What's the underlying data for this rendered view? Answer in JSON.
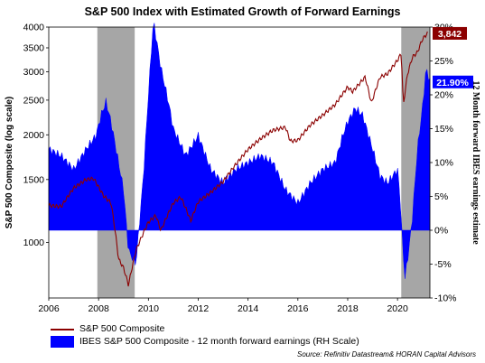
{
  "chart_data": {
    "type": "line",
    "title": "S&P 500 Index with Estimated Growth of Forward Earnings",
    "ylabel_left": "S&P 500 Composite (log scale)",
    "ylabel_right": "12 Month forward IBES earnings estimate",
    "x_ticks": [
      "2006",
      "2008",
      "2010",
      "2012",
      "2014",
      "2016",
      "2018",
      "2020"
    ],
    "x_range": [
      2006,
      2021.3
    ],
    "left_axis": {
      "scale": "log",
      "range": [
        700,
        4000
      ],
      "ticks": [
        1000,
        1500,
        2000,
        2500,
        3000,
        3500,
        4000
      ],
      "tick_labels": [
        "1000",
        "1500",
        "2000",
        "2500",
        "3000",
        "3500",
        "4000"
      ]
    },
    "right_axis": {
      "range": [
        -10,
        30
      ],
      "ticks": [
        -10,
        -5,
        0,
        5,
        10,
        15,
        20,
        25,
        30
      ],
      "tick_labels": [
        "-10%",
        "-5%",
        "0%",
        "5%",
        "10%",
        "15%",
        "20%",
        "25%",
        "30%"
      ]
    },
    "recessions": [
      [
        2007.95,
        2009.45
      ],
      [
        2020.15,
        2021.3
      ]
    ],
    "series": [
      {
        "name": "S&P 500 Composite",
        "axis": "left",
        "color": "#8b0000",
        "x": [
          2006.0,
          2006.5,
          2007.0,
          2007.5,
          2007.8,
          2008.2,
          2008.5,
          2008.8,
          2009.0,
          2009.2,
          2009.5,
          2010.0,
          2010.3,
          2010.5,
          2011.0,
          2011.3,
          2011.7,
          2012.0,
          2012.5,
          2013.0,
          2013.5,
          2014.0,
          2014.5,
          2015.0,
          2015.5,
          2015.7,
          2016.0,
          2016.5,
          2017.0,
          2017.5,
          2018.0,
          2018.2,
          2018.7,
          2018.95,
          2019.3,
          2019.6,
          2020.0,
          2020.15,
          2020.23,
          2020.4,
          2020.6,
          2020.8,
          2021.0,
          2021.2
        ],
        "y": [
          1270,
          1260,
          1420,
          1500,
          1510,
          1350,
          1290,
          900,
          850,
          760,
          950,
          1140,
          1190,
          1080,
          1290,
          1340,
          1150,
          1300,
          1380,
          1480,
          1650,
          1820,
          1950,
          2060,
          2100,
          1920,
          1930,
          2130,
          2270,
          2430,
          2720,
          2640,
          2900,
          2450,
          2900,
          2960,
          3230,
          3380,
          2400,
          2950,
          3300,
          3400,
          3700,
          3842
        ]
      },
      {
        "name": "IBES S&P 500 Composite - 12 month forward earnings (RH Scale)",
        "axis": "right",
        "color": "#0000ff",
        "x": [
          2006.0,
          2006.5,
          2007.0,
          2007.5,
          2007.9,
          2008.1,
          2008.3,
          2008.5,
          2008.8,
          2009.0,
          2009.2,
          2009.5,
          2009.8,
          2010.0,
          2010.2,
          2010.5,
          2010.8,
          2011.0,
          2011.5,
          2012.0,
          2012.5,
          2013.0,
          2013.5,
          2014.0,
          2014.5,
          2015.0,
          2015.5,
          2016.0,
          2016.5,
          2017.0,
          2017.5,
          2017.8,
          2018.0,
          2018.3,
          2018.6,
          2019.0,
          2019.3,
          2019.6,
          2020.0,
          2020.1,
          2020.2,
          2020.3,
          2020.45,
          2020.6,
          2020.8,
          2021.0,
          2021.15,
          2021.3
        ],
        "y": [
          12,
          11,
          9,
          12,
          14,
          17,
          19,
          16,
          10,
          6,
          -3,
          -5,
          8,
          20,
          31,
          24,
          19,
          15,
          11,
          14,
          9,
          7,
          9,
          10,
          11,
          10,
          6,
          4,
          7,
          9,
          10,
          14,
          16,
          18,
          17,
          12,
          8,
          7,
          9,
          5,
          -2,
          -7,
          -3,
          2,
          12,
          18,
          24,
          21.9
        ]
      }
    ],
    "data_labels": {
      "sp_last": "3,842",
      "ibes_last": "21.90%"
    },
    "legend": [
      "S&P 500 Composite",
      "IBES S&P 500 Composite - 12 month forward earnings (RH Scale)"
    ],
    "source": "Source: Refinitiv Datastream& HORAN Capital Advisors"
  }
}
